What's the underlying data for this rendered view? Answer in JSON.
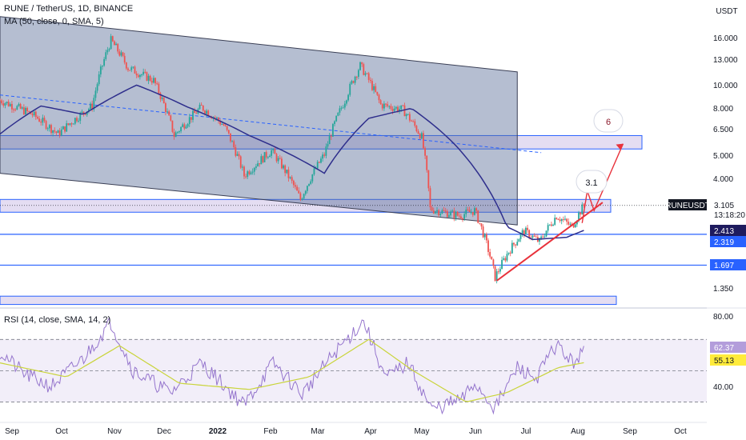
{
  "header": {
    "symbol_line": "RUNE / TetherUS, 1D, BINANCE",
    "ma_line": "MA (50, close, 0, SMA, 5)",
    "rsi_line": "RSI (14, close, SMA, 14, 2)"
  },
  "price_axis": {
    "currency": "USDT",
    "ticks": [
      "16.000",
      "13.000",
      "10.000",
      "8.000",
      "6.500",
      "5.000",
      "4.000",
      "1.350"
    ]
  },
  "rsi_axis": {
    "ticks": [
      "80.00",
      "40.00"
    ]
  },
  "time_axis": [
    "Sep",
    "Oct",
    "Nov",
    "Dec",
    "2022",
    "Feb",
    "Mar",
    "Apr",
    "May",
    "Jun",
    "Jul",
    "Aug",
    "Sep",
    "Oct"
  ],
  "badges": {
    "symbol": "RUNEUSDT",
    "price": "3.105",
    "countdown": "13:18:20",
    "ma_value": "2.413",
    "level_mid": "2.319",
    "level_low": "1.697",
    "rsi": "62.37",
    "rsi_ma": "55.13"
  },
  "annotations": {
    "target_1": "3.1",
    "target_2": "6"
  },
  "colors": {
    "up": "#26a69a",
    "down": "#ef5350",
    "ma": "#2e2e8c",
    "rsi": "#9575cd",
    "rsi_ma": "#c9d43a",
    "level": "#2962ff",
    "trendline": "#e8323c",
    "channel": "#6a7fa3",
    "zone": "#b39ddb"
  },
  "chart_data": {
    "type": "candlestick",
    "symbol": "RUNE / TetherUS",
    "interval": "1D",
    "exchange": "BINANCE",
    "scale": "log",
    "last_price": 3.105,
    "x_range": [
      "2021-09-01",
      "2022-10-20"
    ],
    "y_range": [
      1.1,
      22
    ],
    "anchors": [
      {
        "date": "2021-09-01",
        "close": 9.0
      },
      {
        "date": "2021-09-20",
        "close": 7.8
      },
      {
        "date": "2021-10-05",
        "close": 6.4
      },
      {
        "date": "2021-10-25",
        "close": 8.5
      },
      {
        "date": "2021-11-05",
        "close": 16.5
      },
      {
        "date": "2021-11-15",
        "close": 12.5
      },
      {
        "date": "2021-11-30",
        "close": 11.0
      },
      {
        "date": "2021-12-12",
        "close": 6.3
      },
      {
        "date": "2021-12-28",
        "close": 8.4
      },
      {
        "date": "2022-01-10",
        "close": 7.0
      },
      {
        "date": "2022-01-22",
        "close": 4.2
      },
      {
        "date": "2022-02-07",
        "close": 5.4
      },
      {
        "date": "2022-02-24",
        "close": 3.3
      },
      {
        "date": "2022-03-10",
        "close": 5.2
      },
      {
        "date": "2022-03-22",
        "close": 9.0
      },
      {
        "date": "2022-03-31",
        "close": 12.8
      },
      {
        "date": "2022-04-12",
        "close": 8.6
      },
      {
        "date": "2022-04-25",
        "close": 8.2
      },
      {
        "date": "2022-05-06",
        "close": 6.2
      },
      {
        "date": "2022-05-11",
        "close": 3.0
      },
      {
        "date": "2022-05-28",
        "close": 2.8
      },
      {
        "date": "2022-06-06",
        "close": 2.95
      },
      {
        "date": "2022-06-18",
        "close": 1.5
      },
      {
        "date": "2022-06-26",
        "close": 1.95
      },
      {
        "date": "2022-07-05",
        "close": 2.4
      },
      {
        "date": "2022-07-14",
        "close": 2.15
      },
      {
        "date": "2022-07-24",
        "close": 2.8
      },
      {
        "date": "2022-08-02",
        "close": 2.5
      },
      {
        "date": "2022-08-09",
        "close": 3.105
      }
    ],
    "moving_average": {
      "name": "MA (50, close, 0, SMA, 5)",
      "anchors": [
        {
          "date": "2021-09-01",
          "value": 6.4
        },
        {
          "date": "2021-09-25",
          "value": 8.5
        },
        {
          "date": "2021-10-20",
          "value": 7.8
        },
        {
          "date": "2021-11-20",
          "value": 10.5
        },
        {
          "date": "2021-12-20",
          "value": 8.4
        },
        {
          "date": "2022-01-25",
          "value": 6.3
        },
        {
          "date": "2022-03-10",
          "value": 4.3
        },
        {
          "date": "2022-04-05",
          "value": 7.5
        },
        {
          "date": "2022-04-30",
          "value": 8.3
        },
        {
          "date": "2022-05-25",
          "value": 5.8
        },
        {
          "date": "2022-06-25",
          "value": 2.5
        },
        {
          "date": "2022-07-10",
          "value": 2.2
        },
        {
          "date": "2022-07-30",
          "value": 2.25
        },
        {
          "date": "2022-08-09",
          "value": 2.413
        }
      ]
    },
    "horizontal_levels": [
      2.413,
      2.319,
      1.697
    ],
    "zones": [
      {
        "from": 5.5,
        "to": 6.3
      },
      {
        "from": 2.9,
        "to": 3.3
      },
      {
        "from": 1.14,
        "to": 1.24
      }
    ],
    "channel": {
      "upper": [
        {
          "date": "2021-09-01",
          "value": 21.0
        },
        {
          "date": "2022-07-01",
          "value": 12.0
        }
      ],
      "lower": [
        {
          "date": "2021-09-01",
          "value": 4.3
        },
        {
          "date": "2022-07-01",
          "value": 2.55
        }
      ]
    },
    "dashed_trendline": [
      {
        "date": "2021-09-01",
        "value": 9.5
      },
      {
        "date": "2022-07-15",
        "value": 5.3
      }
    ],
    "support_trendline": [
      {
        "date": "2022-06-19",
        "value": 1.45
      },
      {
        "date": "2022-08-20",
        "value": 3.2
      }
    ],
    "projection": [
      {
        "date": "2022-08-08",
        "value": 2.6
      },
      {
        "date": "2022-08-11",
        "value": 3.6
      },
      {
        "date": "2022-08-15",
        "value": 2.95
      },
      {
        "date": "2022-09-01",
        "value": 5.8
      }
    ],
    "targets": [
      {
        "label": "3.1",
        "value": 3.1
      },
      {
        "label": "6",
        "value": 6.0
      }
    ],
    "rsi": {
      "name": "RSI (14, close, SMA, 14, 2)",
      "last": 62.37,
      "ma_last": 55.13,
      "y_range": [
        20,
        85
      ],
      "bands": [
        70,
        30
      ],
      "mid": 50,
      "anchors": [
        {
          "date": "2021-09-01",
          "value": 62
        },
        {
          "date": "2021-09-15",
          "value": 48
        },
        {
          "date": "2021-10-01",
          "value": 40
        },
        {
          "date": "2021-10-20",
          "value": 58
        },
        {
          "date": "2021-11-05",
          "value": 81
        },
        {
          "date": "2021-11-18",
          "value": 50
        },
        {
          "date": "2021-12-10",
          "value": 36
        },
        {
          "date": "2021-12-28",
          "value": 55
        },
        {
          "date": "2022-01-22",
          "value": 28
        },
        {
          "date": "2022-02-08",
          "value": 55
        },
        {
          "date": "2022-02-25",
          "value": 35
        },
        {
          "date": "2022-03-15",
          "value": 60
        },
        {
          "date": "2022-04-02",
          "value": 82
        },
        {
          "date": "2022-04-15",
          "value": 45
        },
        {
          "date": "2022-04-28",
          "value": 55
        },
        {
          "date": "2022-05-12",
          "value": 25
        },
        {
          "date": "2022-05-30",
          "value": 32
        },
        {
          "date": "2022-06-06",
          "value": 42
        },
        {
          "date": "2022-06-18",
          "value": 26
        },
        {
          "date": "2022-07-01",
          "value": 52
        },
        {
          "date": "2022-07-12",
          "value": 45
        },
        {
          "date": "2022-07-24",
          "value": 67
        },
        {
          "date": "2022-08-02",
          "value": 55
        },
        {
          "date": "2022-08-09",
          "value": 62.37
        }
      ],
      "ma_anchors": [
        {
          "date": "2021-09-01",
          "value": 55
        },
        {
          "date": "2021-10-10",
          "value": 46
        },
        {
          "date": "2021-11-10",
          "value": 66
        },
        {
          "date": "2021-12-15",
          "value": 42
        },
        {
          "date": "2022-01-25",
          "value": 38
        },
        {
          "date": "2022-03-01",
          "value": 46
        },
        {
          "date": "2022-04-05",
          "value": 70
        },
        {
          "date": "2022-05-01",
          "value": 50
        },
        {
          "date": "2022-06-01",
          "value": 30
        },
        {
          "date": "2022-06-25",
          "value": 36
        },
        {
          "date": "2022-07-25",
          "value": 52
        },
        {
          "date": "2022-08-09",
          "value": 55.13
        }
      ]
    }
  }
}
